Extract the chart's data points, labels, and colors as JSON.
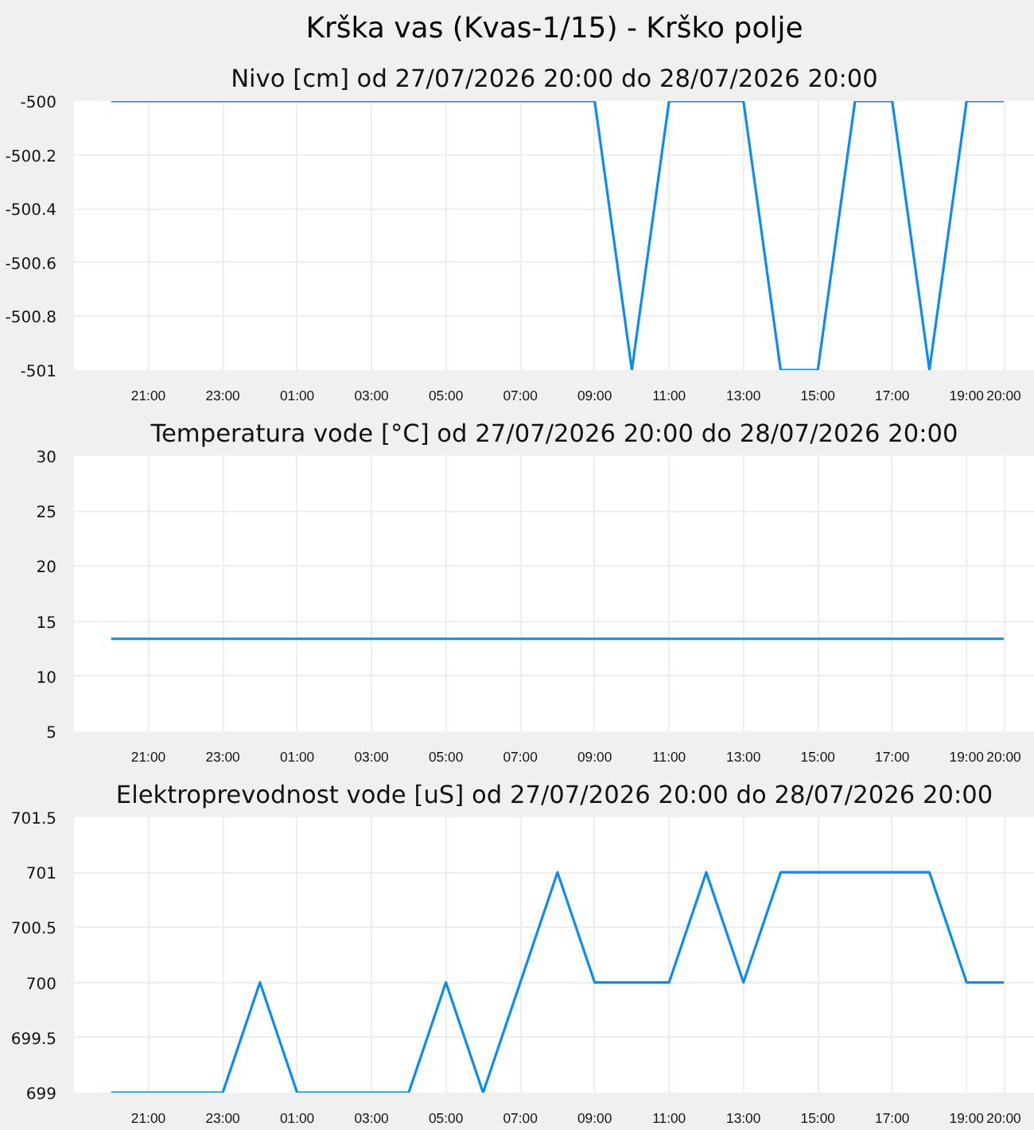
{
  "chart_data": [
    {
      "type": "line",
      "title": "Krška vas (Kvas-1/15) - Krško polje",
      "subtitle": "Nivo [cm] od 27/07/2026 20:00 do 28/07/2026 20:00",
      "x": [
        "2026-07-27T20:00",
        "2026-07-28T09:00",
        "2026-07-28T10:00",
        "2026-07-28T11:00",
        "2026-07-28T13:00",
        "2026-07-28T14:00",
        "2026-07-28T15:00",
        "2026-07-28T16:00",
        "2026-07-28T17:00",
        "2026-07-28T18:00",
        "2026-07-28T19:00",
        "2026-07-28T20:00"
      ],
      "series": [
        {
          "color": "#0a8cf0",
          "values": [
            -500,
            -500,
            -501,
            -500,
            -500,
            -501,
            -501,
            -500,
            -500,
            -501,
            -500,
            -500
          ]
        }
      ],
      "xlim": [
        "2026-07-27T19:00",
        "2026-07-28T20:50"
      ],
      "xticks": [
        {
          "value": "2026-07-27T21:00",
          "label": "21:00"
        },
        {
          "value": "2026-07-27T23:00",
          "label": "23:00"
        },
        {
          "value": "2026-07-28T01:00",
          "label": "01:00"
        },
        {
          "value": "2026-07-28T03:00",
          "label": "03:00"
        },
        {
          "value": "2026-07-28T05:00",
          "label": "05:00"
        },
        {
          "value": "2026-07-28T07:00",
          "label": "07:00"
        },
        {
          "value": "2026-07-28T09:00",
          "label": "09:00"
        },
        {
          "value": "2026-07-28T11:00",
          "label": "11:00"
        },
        {
          "value": "2026-07-28T13:00",
          "label": "13:00"
        },
        {
          "value": "2026-07-28T15:00",
          "label": "15:00"
        },
        {
          "value": "2026-07-28T17:00",
          "label": "17:00"
        },
        {
          "value": "2026-07-28T19:00",
          "label": "19:00"
        },
        {
          "value": "2026-07-28T20:00",
          "label": "20:00"
        }
      ],
      "ylim": [
        -501,
        -500
      ],
      "yticks": [
        -501,
        -500.8,
        -500.6,
        -500.4,
        -500.2,
        -500
      ],
      "grid": true
    },
    {
      "type": "line",
      "subtitle": "Temperatura vode [°C] od 27/07/2026 20:00 do 28/07/2026 20:00",
      "x": [
        "2026-07-27T20:00",
        "2026-07-28T20:00"
      ],
      "series": [
        {
          "color": "#0a8cf0",
          "values": [
            13.4,
            13.4
          ]
        }
      ],
      "xlim": [
        "2026-07-27T19:00",
        "2026-07-28T20:50"
      ],
      "xticks": [
        {
          "value": "2026-07-27T21:00",
          "label": "21:00"
        },
        {
          "value": "2026-07-27T23:00",
          "label": "23:00"
        },
        {
          "value": "2026-07-28T01:00",
          "label": "01:00"
        },
        {
          "value": "2026-07-28T03:00",
          "label": "03:00"
        },
        {
          "value": "2026-07-28T05:00",
          "label": "05:00"
        },
        {
          "value": "2026-07-28T07:00",
          "label": "07:00"
        },
        {
          "value": "2026-07-28T09:00",
          "label": "09:00"
        },
        {
          "value": "2026-07-28T11:00",
          "label": "11:00"
        },
        {
          "value": "2026-07-28T13:00",
          "label": "13:00"
        },
        {
          "value": "2026-07-28T15:00",
          "label": "15:00"
        },
        {
          "value": "2026-07-28T17:00",
          "label": "17:00"
        },
        {
          "value": "2026-07-28T19:00",
          "label": "19:00"
        },
        {
          "value": "2026-07-28T20:00",
          "label": "20:00"
        }
      ],
      "ylim": [
        5,
        30
      ],
      "yticks": [
        5,
        10,
        15,
        20,
        25,
        30
      ],
      "grid": true
    },
    {
      "type": "line",
      "subtitle": "Elektroprevodnost vode [uS] od 27/07/2026 20:00 do 28/07/2026 20:00",
      "x": [
        "2026-07-27T20:00",
        "2026-07-27T23:00",
        "2026-07-28T00:00",
        "2026-07-28T01:00",
        "2026-07-28T04:00",
        "2026-07-28T05:00",
        "2026-07-28T06:00",
        "2026-07-28T08:00",
        "2026-07-28T09:00",
        "2026-07-28T11:00",
        "2026-07-28T12:00",
        "2026-07-28T13:00",
        "2026-07-28T14:00",
        "2026-07-28T18:00",
        "2026-07-28T19:00",
        "2026-07-28T20:00"
      ],
      "series": [
        {
          "color": "#0a8cf0",
          "values": [
            699,
            699,
            700,
            699,
            699,
            700,
            699,
            701,
            700,
            700,
            701,
            700,
            701,
            701,
            700,
            700
          ]
        }
      ],
      "xlim": [
        "2026-07-27T19:00",
        "2026-07-28T20:50"
      ],
      "xticks": [
        {
          "value": "2026-07-27T21:00",
          "label": "21:00"
        },
        {
          "value": "2026-07-27T23:00",
          "label": "23:00"
        },
        {
          "value": "2026-07-28T01:00",
          "label": "01:00"
        },
        {
          "value": "2026-07-28T03:00",
          "label": "03:00"
        },
        {
          "value": "2026-07-28T05:00",
          "label": "05:00"
        },
        {
          "value": "2026-07-28T07:00",
          "label": "07:00"
        },
        {
          "value": "2026-07-28T09:00",
          "label": "09:00"
        },
        {
          "value": "2026-07-28T11:00",
          "label": "11:00"
        },
        {
          "value": "2026-07-28T13:00",
          "label": "13:00"
        },
        {
          "value": "2026-07-28T15:00",
          "label": "15:00"
        },
        {
          "value": "2026-07-28T17:00",
          "label": "17:00"
        },
        {
          "value": "2026-07-28T19:00",
          "label": "19:00"
        },
        {
          "value": "2026-07-28T20:00",
          "label": "20:00"
        }
      ],
      "ylim": [
        699,
        701.5
      ],
      "yticks": [
        699,
        699.5,
        700,
        700.5,
        701,
        701.5
      ],
      "grid": true
    }
  ]
}
